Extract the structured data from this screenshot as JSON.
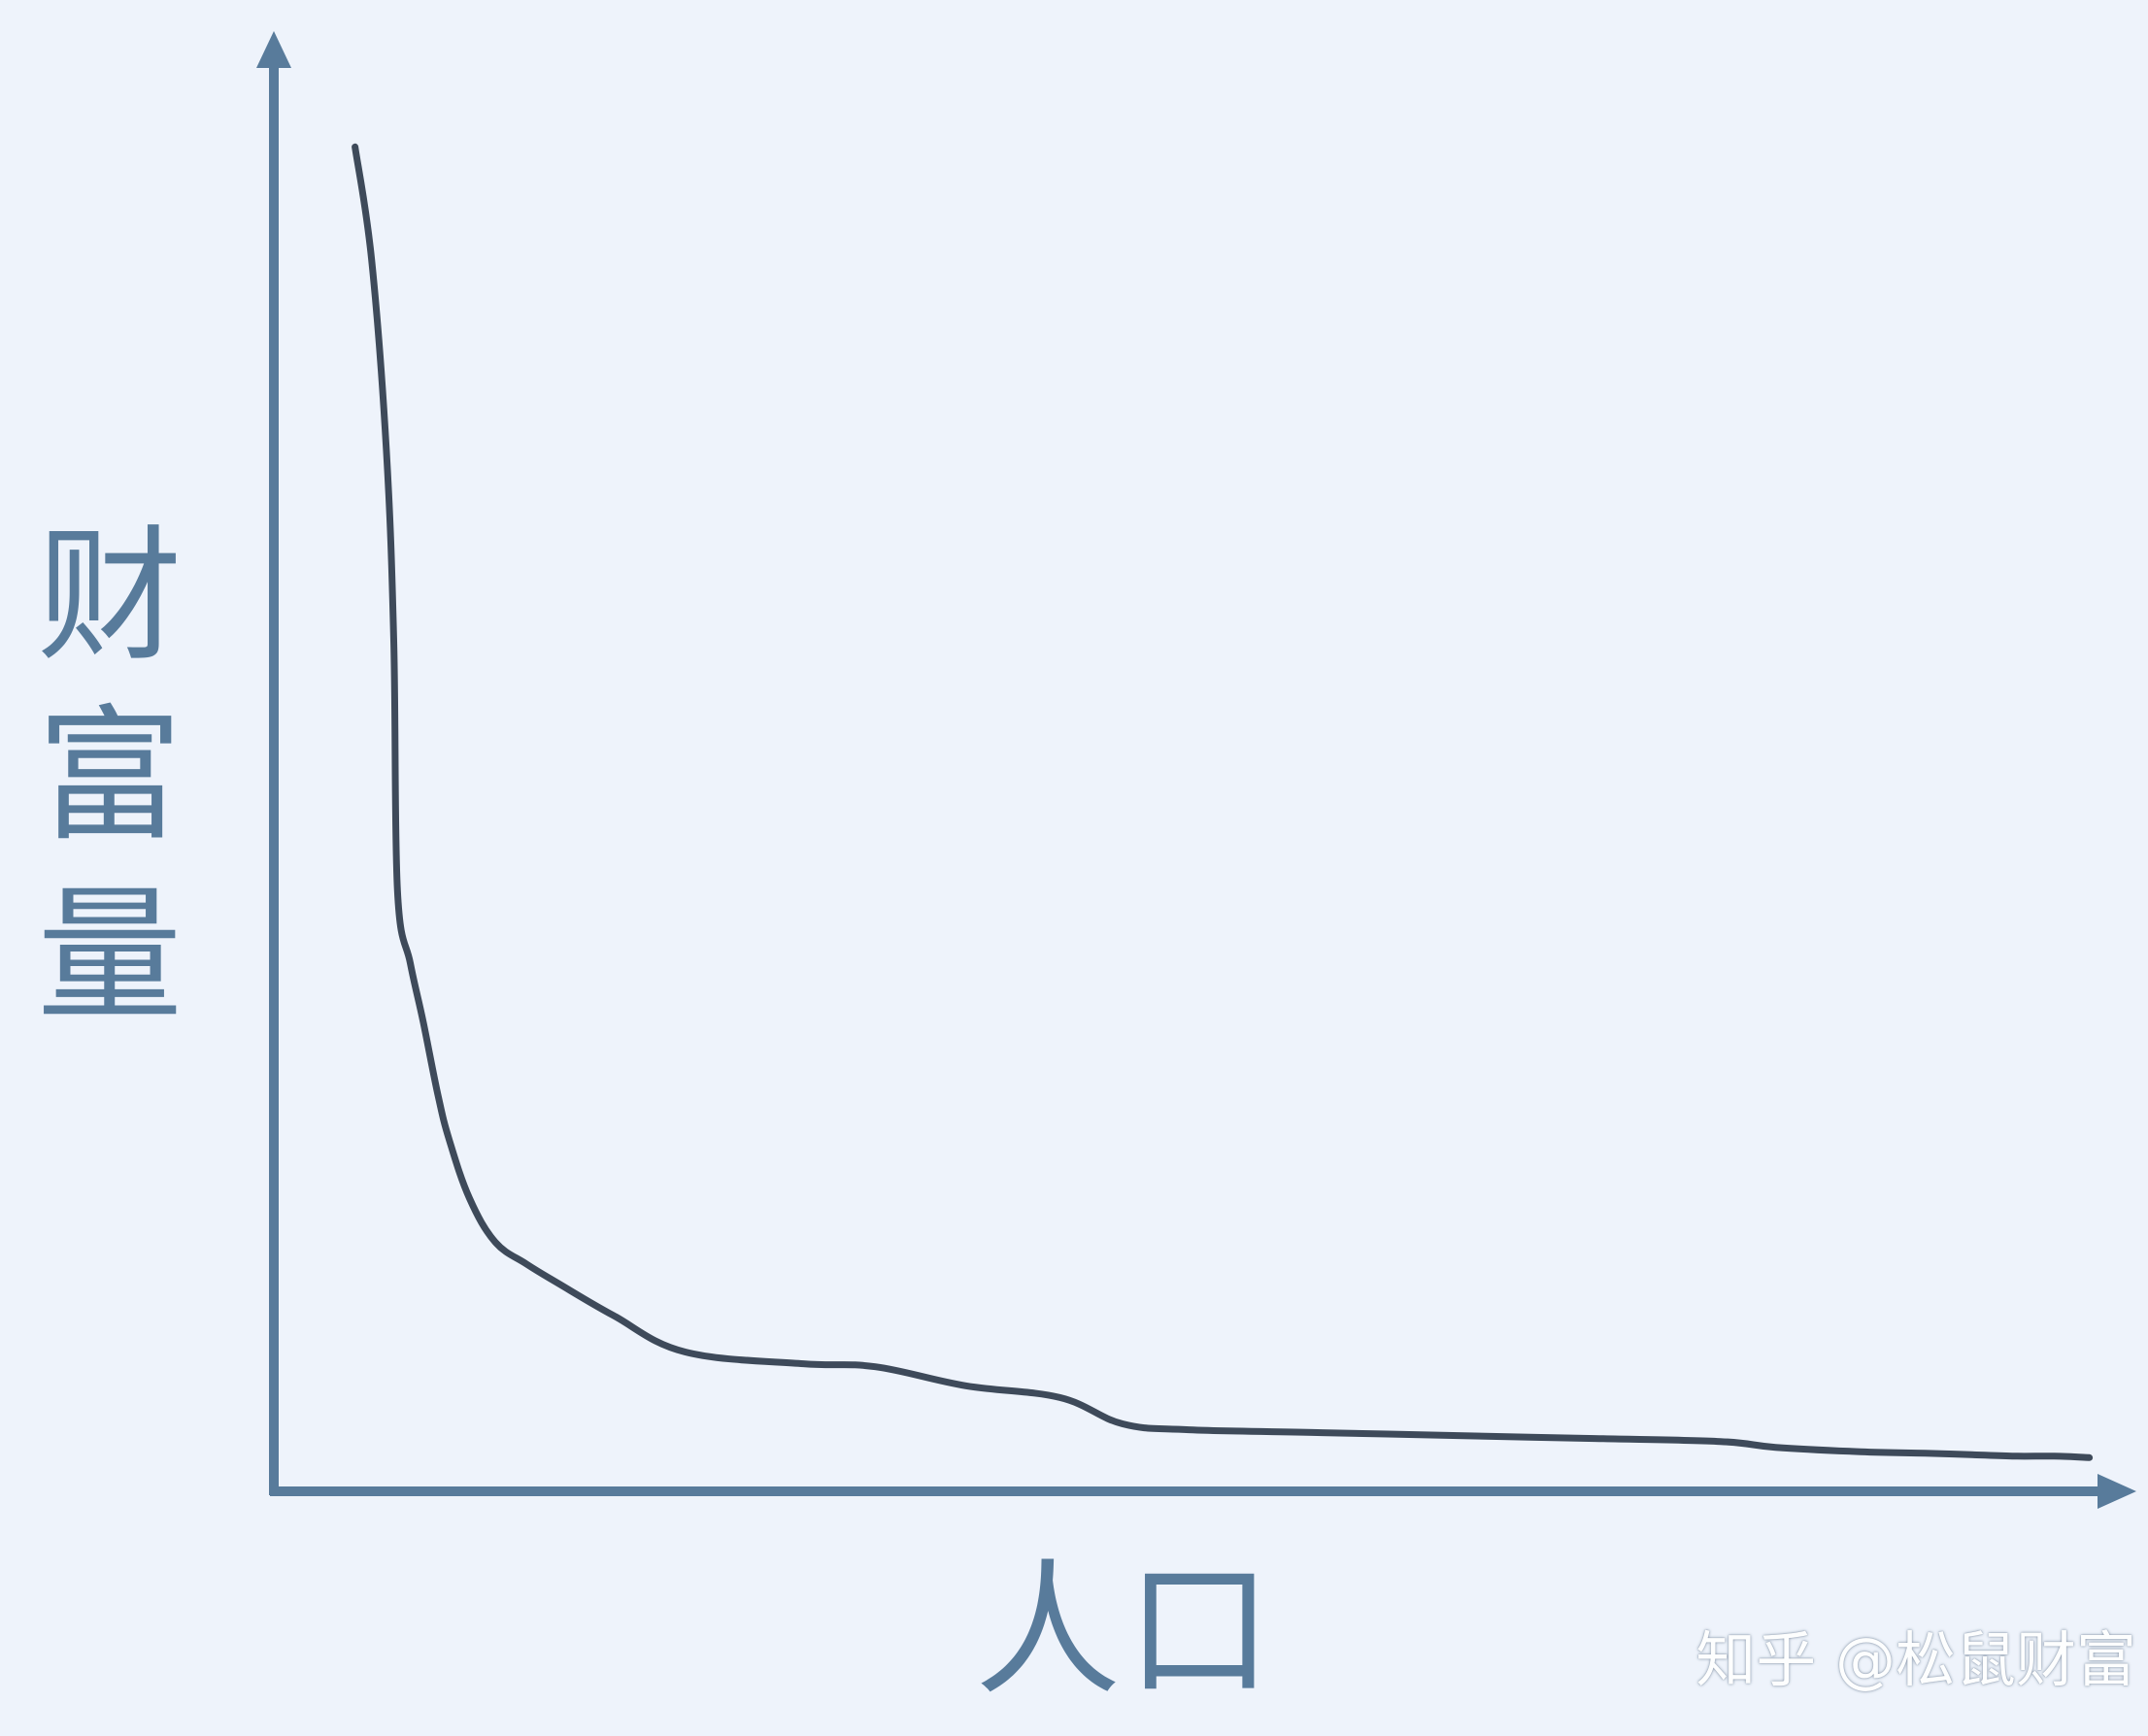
{
  "chart_data": {
    "type": "line",
    "title": "",
    "xlabel": "人口",
    "ylabel": "财富量",
    "xlim": [
      0,
      100
    ],
    "ylim": [
      0,
      100
    ],
    "grid": false,
    "legend": "none",
    "series": [
      {
        "x": [
          4.4,
          5.3,
          6.1,
          6.5,
          6.7,
          7.4,
          8.1,
          8.9,
          9.5,
          10.6,
          12.0,
          13.7,
          15.4,
          18.4,
          22.3,
          28.7,
          32.6,
          37.5,
          42.6,
          46.0,
          49.6,
          56.8,
          64.2,
          71.6,
          78.4,
          81.4,
          86.0,
          89.5,
          92.0,
          94.5,
          96.5,
          98.4
        ],
        "y": [
          91.7,
          84.0,
          71.0,
          58.0,
          41.0,
          36.0,
          32.0,
          27.0,
          24.0,
          20.0,
          17.0,
          15.5,
          14.2,
          12.0,
          9.5,
          8.7,
          8.5,
          7.2,
          6.4,
          4.6,
          4.2,
          4.0,
          3.8,
          3.6,
          3.4,
          3.0,
          2.7,
          2.6,
          2.5,
          2.4,
          2.4,
          2.3
        ]
      }
    ],
    "line_color": "#3e4a5a",
    "axis_color": "#587b9b"
  },
  "watermark": "知乎 @松鼠财富",
  "colors": {
    "background": "#eef3fb",
    "label_color": "#587b9b"
  }
}
